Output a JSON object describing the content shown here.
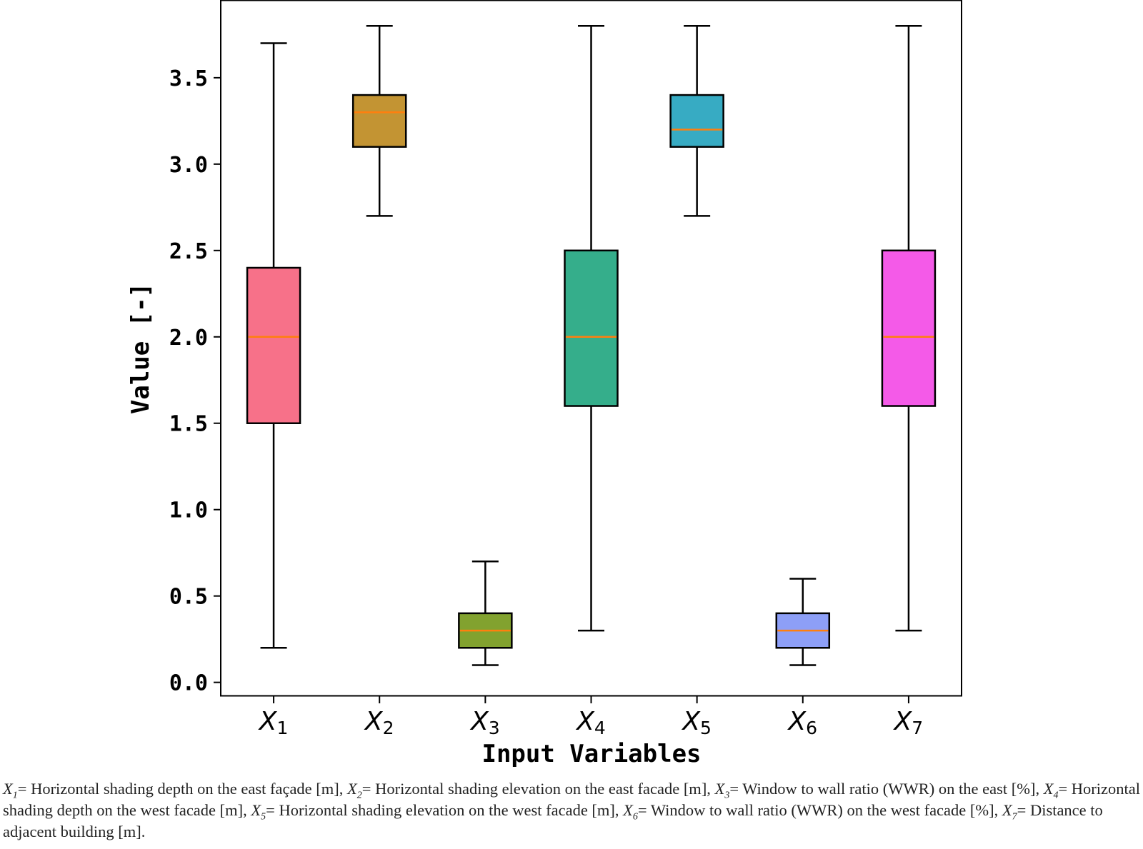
{
  "chart_data": {
    "type": "box",
    "xlabel": "Input Variables",
    "ylabel": "Value [-]",
    "ylim": [
      -0.08,
      3.95
    ],
    "yticks": [
      "0.0",
      "0.5",
      "1.0",
      "1.5",
      "2.0",
      "2.5",
      "3.0",
      "3.5"
    ],
    "categories": [
      {
        "base": "X",
        "sub": "1"
      },
      {
        "base": "X",
        "sub": "2"
      },
      {
        "base": "X",
        "sub": "3"
      },
      {
        "base": "X",
        "sub": "4"
      },
      {
        "base": "X",
        "sub": "5"
      },
      {
        "base": "X",
        "sub": "6"
      },
      {
        "base": "X",
        "sub": "7"
      }
    ],
    "boxes": [
      {
        "min": 0.2,
        "q1": 1.5,
        "median": 2.0,
        "q3": 2.4,
        "max": 3.7,
        "color": "#f77189"
      },
      {
        "min": 2.7,
        "q1": 3.1,
        "median": 3.3,
        "q3": 3.4,
        "max": 3.8,
        "color": "#c39433"
      },
      {
        "min": 0.1,
        "q1": 0.2,
        "median": 0.3,
        "q3": 0.4,
        "max": 0.7,
        "color": "#82a22f"
      },
      {
        "min": 0.3,
        "q1": 1.6,
        "median": 2.0,
        "q3": 2.5,
        "max": 3.8,
        "color": "#35ae8b"
      },
      {
        "min": 2.7,
        "q1": 3.1,
        "median": 3.2,
        "q3": 3.4,
        "max": 3.8,
        "color": "#37abc3"
      },
      {
        "min": 0.1,
        "q1": 0.2,
        "median": 0.3,
        "q3": 0.4,
        "max": 0.6,
        "color": "#8d9ff7"
      },
      {
        "min": 0.3,
        "q1": 1.6,
        "median": 2.0,
        "q3": 2.5,
        "max": 3.8,
        "color": "#f45ae8"
      }
    ],
    "median_color": "#ff7f0e",
    "grid": false
  },
  "caption": [
    {
      "var": "X",
      "sub": "1",
      "text": "= Horizontal shading depth on the east façade [m], "
    },
    {
      "var": "X",
      "sub": "2",
      "text": "= Horizontal shading elevation on the east facade [m], "
    },
    {
      "var": "X",
      "sub": "3",
      "text": "= Window to wall ratio (WWR) on the east [%], "
    },
    {
      "var": "X",
      "sub": "4",
      "text": "= Horizontal shading depth on the west facade [m], "
    },
    {
      "var": "X",
      "sub": "5",
      "text": "= Horizontal shading elevation on the west facade [m], "
    },
    {
      "var": "X",
      "sub": "6",
      "text": "= Window to wall ratio (WWR) on the west facade [%], "
    },
    {
      "var": "X",
      "sub": "7",
      "text": "= Distance to adjacent building [m]."
    }
  ]
}
